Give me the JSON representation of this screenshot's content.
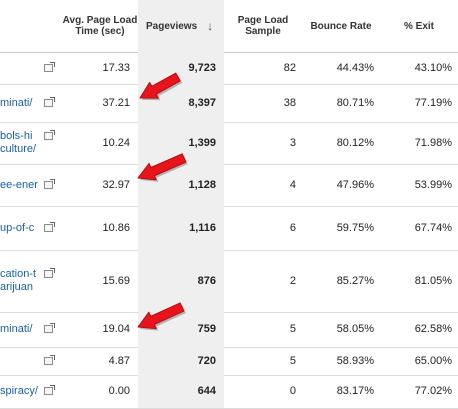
{
  "columns": {
    "load_time": "Avg. Page Load Time (sec)",
    "pageviews": "Pageviews",
    "sort_icon": "down-arrow-icon",
    "sample": "Page Load Sample",
    "bounce": "Bounce Rate",
    "exit": "% Exit"
  },
  "rows": [
    {
      "page": [
        ""
      ],
      "load": "17.33",
      "pageviews": "9,723",
      "sample": "82",
      "bounce": "44.43%",
      "exit": "43.10%"
    },
    {
      "page": [
        "minati/"
      ],
      "load": "37.21",
      "pageviews": "8,397",
      "sample": "38",
      "bounce": "80.71%",
      "exit": "77.19%"
    },
    {
      "page": [
        "bols-hi",
        "culture/"
      ],
      "load": "10.24",
      "pageviews": "1,399",
      "sample": "3",
      "bounce": "80.12%",
      "exit": "71.98%"
    },
    {
      "page": [
        "ee-ener"
      ],
      "load": "32.97",
      "pageviews": "1,128",
      "sample": "4",
      "bounce": "47.96%",
      "exit": "53.99%"
    },
    {
      "page": [
        "up-of-c"
      ],
      "load": "10.86",
      "pageviews": "1,116",
      "sample": "6",
      "bounce": "59.75%",
      "exit": "67.74%"
    },
    {
      "page": [
        "cation-t",
        "arijuan"
      ],
      "load": "15.69",
      "pageviews": "876",
      "sample": "2",
      "bounce": "85.27%",
      "exit": "81.05%"
    },
    {
      "page": [
        "minati/"
      ],
      "load": "19.04",
      "pageviews": "759",
      "sample": "5",
      "bounce": "58.05%",
      "exit": "62.58%"
    },
    {
      "page": [
        ""
      ],
      "load": "4.87",
      "pageviews": "720",
      "sample": "5",
      "bounce": "58.93%",
      "exit": "65.00%"
    },
    {
      "page": [
        "spiracy/"
      ],
      "load": "0.00",
      "pageviews": "644",
      "sample": "0",
      "bounce": "83.17%",
      "exit": "77.02%"
    }
  ],
  "annotations": {
    "arrow_color": "#e8141b",
    "arrow_icon": "red-arrow-icon"
  }
}
